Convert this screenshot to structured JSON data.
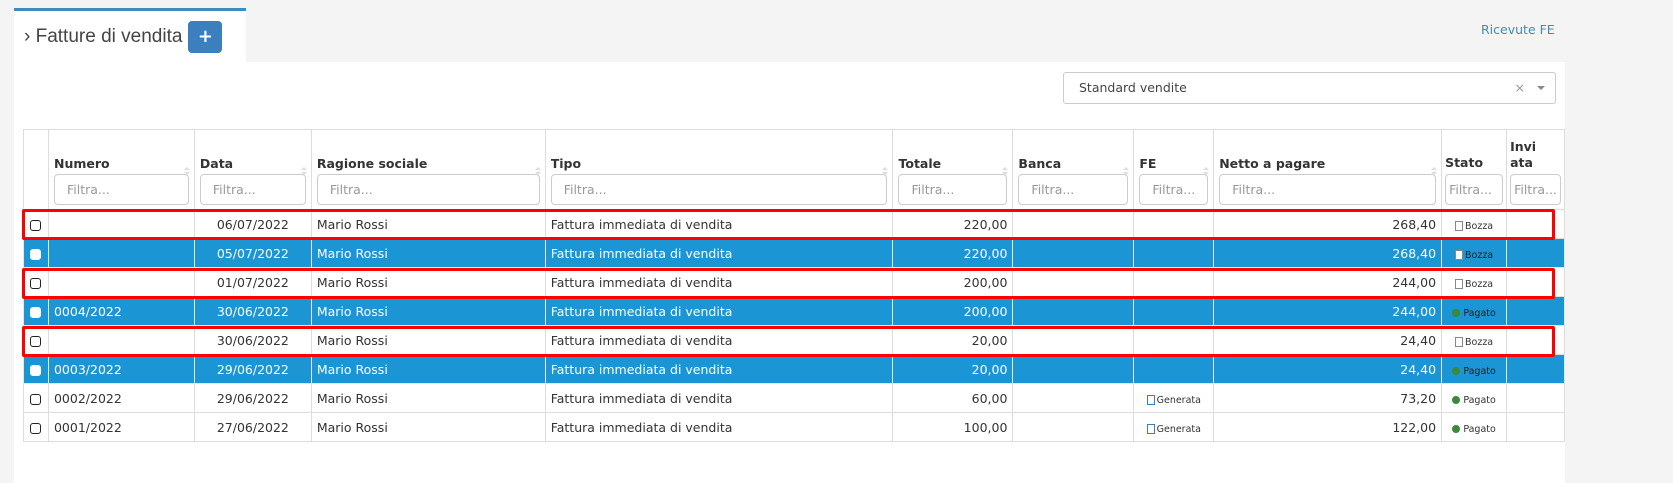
{
  "header": {
    "title": "Fatture di vendita",
    "add_label": "+",
    "ricevute_link": "Ricevute FE"
  },
  "segment_select": {
    "value": "Standard vendite",
    "clear": "×"
  },
  "columns": [
    {
      "label": "Numero",
      "placeholder": "Filtra..."
    },
    {
      "label": "Data",
      "placeholder": "Filtra..."
    },
    {
      "label": "Ragione sociale",
      "placeholder": "Filtra..."
    },
    {
      "label": "Tipo",
      "placeholder": "Filtra..."
    },
    {
      "label": "Totale",
      "placeholder": "Filtra..."
    },
    {
      "label": "Banca",
      "placeholder": "Filtra..."
    },
    {
      "label": "FE",
      "placeholder": "Filtra..."
    },
    {
      "label": "Netto a pagare",
      "placeholder": "Filtra..."
    },
    {
      "label": "Stato",
      "placeholder": "Filtra..."
    },
    {
      "label": "Invi ata",
      "placeholder": "Filtra..."
    }
  ],
  "rows": [
    {
      "selected": false,
      "highlighted": true,
      "numero": "",
      "data": "06/07/2022",
      "ragione": "Mario Rossi",
      "tipo": "Fattura immediata di vendita",
      "totale": "220,00",
      "banca": "",
      "fe": "",
      "netto": "268,40",
      "stato": "Bozza",
      "stato_icon": "document-icon"
    },
    {
      "selected": true,
      "highlighted": false,
      "numero": "",
      "data": "05/07/2022",
      "ragione": "Mario Rossi",
      "tipo": "Fattura immediata di vendita",
      "totale": "220,00",
      "banca": "",
      "fe": "",
      "netto": "268,40",
      "stato": "Bozza",
      "stato_icon": "document-icon"
    },
    {
      "selected": false,
      "highlighted": true,
      "numero": "",
      "data": "01/07/2022",
      "ragione": "Mario Rossi",
      "tipo": "Fattura immediata di vendita",
      "totale": "200,00",
      "banca": "",
      "fe": "",
      "netto": "244,00",
      "stato": "Bozza",
      "stato_icon": "document-icon"
    },
    {
      "selected": true,
      "highlighted": false,
      "numero": "0004/2022",
      "data": "30/06/2022",
      "ragione": "Mario Rossi",
      "tipo": "Fattura immediata di vendita",
      "totale": "200,00",
      "banca": "",
      "fe": "",
      "netto": "244,00",
      "stato": "Pagato",
      "stato_icon": "check-circle-icon"
    },
    {
      "selected": false,
      "highlighted": true,
      "numero": "",
      "data": "30/06/2022",
      "ragione": "Mario Rossi",
      "tipo": "Fattura immediata di vendita",
      "totale": "20,00",
      "banca": "",
      "fe": "",
      "netto": "24,40",
      "stato": "Bozza",
      "stato_icon": "document-icon"
    },
    {
      "selected": true,
      "highlighted": false,
      "numero": "0003/2022",
      "data": "29/06/2022",
      "ragione": "Mario Rossi",
      "tipo": "Fattura immediata di vendita",
      "totale": "20,00",
      "banca": "",
      "fe": "",
      "netto": "24,40",
      "stato": "Pagato",
      "stato_icon": "check-circle-icon"
    },
    {
      "selected": false,
      "highlighted": false,
      "numero": "0002/2022",
      "data": "29/06/2022",
      "ragione": "Mario Rossi",
      "tipo": "Fattura immediata di vendita",
      "totale": "60,00",
      "banca": "",
      "fe": "Generata",
      "netto": "73,20",
      "stato": "Pagato",
      "stato_icon": "check-circle-icon"
    },
    {
      "selected": false,
      "highlighted": false,
      "numero": "0001/2022",
      "data": "27/06/2022",
      "ragione": "Mario Rossi",
      "tipo": "Fattura immediata di vendita",
      "totale": "100,00",
      "banca": "",
      "fe": "Generata",
      "netto": "122,00",
      "stato": "Pagato",
      "stato_icon": "check-circle-icon"
    }
  ],
  "colors": {
    "accent": "#3c8dbc",
    "selected_row": "#1b95d3",
    "highlight": "#ff0000"
  }
}
